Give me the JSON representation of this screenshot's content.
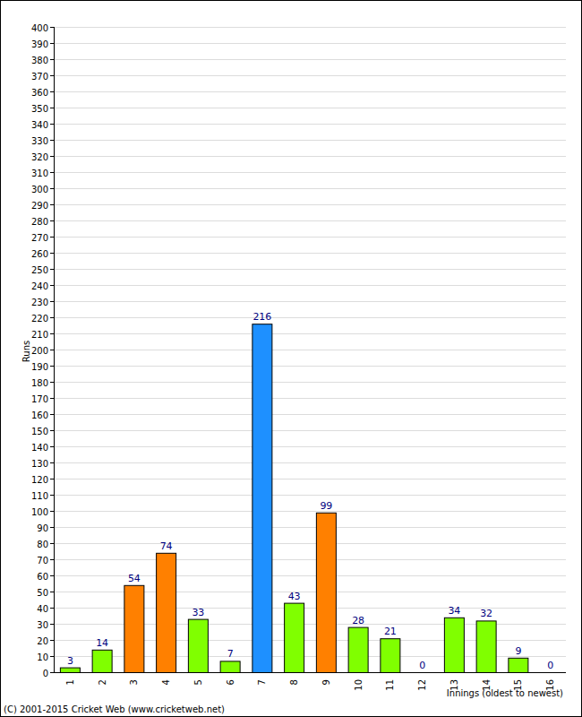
{
  "chart_data": {
    "type": "bar",
    "categories": [
      "1",
      "2",
      "3",
      "4",
      "5",
      "6",
      "7",
      "8",
      "9",
      "10",
      "11",
      "12",
      "13",
      "14",
      "15",
      "16"
    ],
    "values": [
      3,
      14,
      54,
      74,
      33,
      7,
      216,
      43,
      99,
      28,
      21,
      0,
      34,
      32,
      9,
      0
    ],
    "colors": [
      "#80ff00",
      "#80ff00",
      "#ff8000",
      "#ff8000",
      "#80ff00",
      "#80ff00",
      "#1e90ff",
      "#80ff00",
      "#ff8000",
      "#80ff00",
      "#80ff00",
      "#80ff00",
      "#80ff00",
      "#80ff00",
      "#80ff00",
      "#80ff00"
    ],
    "y_label": "Runs",
    "x_label": "Innings (oldest to newest)",
    "annotations": [
      "(C) 2001-2015 Cricket Web (www.cricketweb.net)"
    ],
    "ylim": [
      0,
      400
    ],
    "yticks": [
      0,
      10,
      20,
      30,
      40,
      50,
      60,
      70,
      80,
      90,
      100,
      110,
      120,
      130,
      140,
      150,
      160,
      170,
      180,
      190,
      200,
      210,
      220,
      230,
      240,
      250,
      260,
      270,
      280,
      290,
      300,
      310,
      320,
      330,
      340,
      350,
      360,
      370,
      380,
      390,
      400
    ],
    "grid": true,
    "data_labels": true
  }
}
